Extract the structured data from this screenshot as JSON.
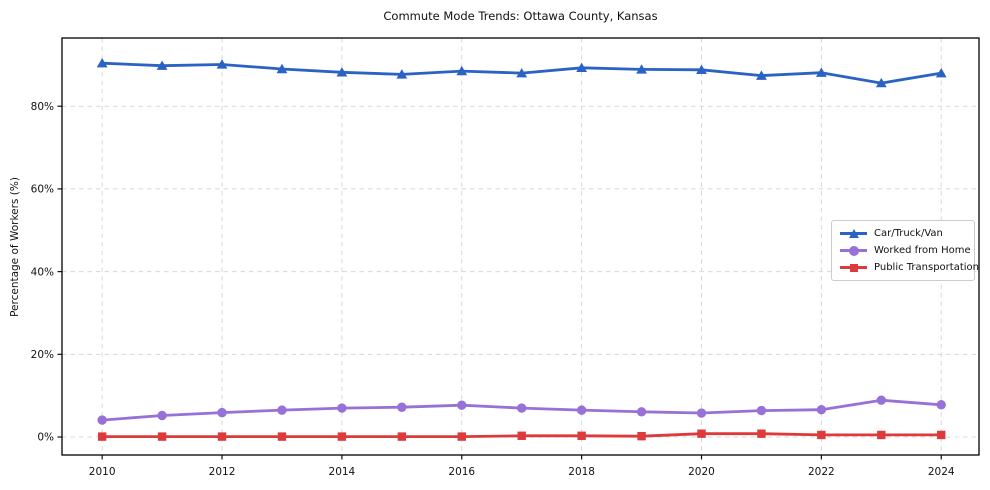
{
  "chart_data": {
    "type": "line",
    "title": "Commute Mode Trends: Ottawa County, Kansas",
    "xlabel": "",
    "ylabel": "Percentage of Workers (%)",
    "x": [
      2010,
      2011,
      2012,
      2013,
      2014,
      2015,
      2016,
      2017,
      2018,
      2019,
      2020,
      2021,
      2022,
      2023,
      2024
    ],
    "x_ticks": [
      2010,
      2012,
      2014,
      2016,
      2018,
      2020,
      2022,
      2024
    ],
    "x_tick_labels": [
      "2010",
      "2012",
      "2014",
      "2016",
      "2018",
      "2020",
      "2022",
      "2024"
    ],
    "y_ticks": [
      0,
      20,
      40,
      60,
      80
    ],
    "y_tick_labels": [
      "0%",
      "20%",
      "40%",
      "60%",
      "80%"
    ],
    "xlim": [
      2009.33,
      2024.63
    ],
    "ylim": [
      -4.35,
      96.5
    ],
    "grid": "dashed",
    "grid_color": "#d8d8d8",
    "spine_color": "#000000",
    "tick_color": "#111111",
    "legend_position": "center-right",
    "series": [
      {
        "name": "Car/Truck/Van",
        "color": "#2b63c5",
        "marker": "triangle",
        "values": [
          90.4,
          89.8,
          90.1,
          89.0,
          88.2,
          87.7,
          88.5,
          88.0,
          89.3,
          88.9,
          88.8,
          87.4,
          88.1,
          85.6,
          88.0
        ]
      },
      {
        "name": "Worked from Home",
        "color": "#9770d8",
        "marker": "circle",
        "values": [
          4.1,
          5.2,
          5.9,
          6.5,
          7.0,
          7.2,
          7.7,
          7.0,
          6.5,
          6.1,
          5.8,
          6.4,
          6.6,
          8.9,
          7.8
        ]
      },
      {
        "name": "Public Transportation",
        "color": "#dc3a3b",
        "marker": "square",
        "values": [
          0.1,
          0.1,
          0.1,
          0.1,
          0.1,
          0.1,
          0.1,
          0.3,
          0.3,
          0.2,
          0.8,
          0.8,
          0.5,
          0.5,
          0.5
        ]
      }
    ]
  }
}
